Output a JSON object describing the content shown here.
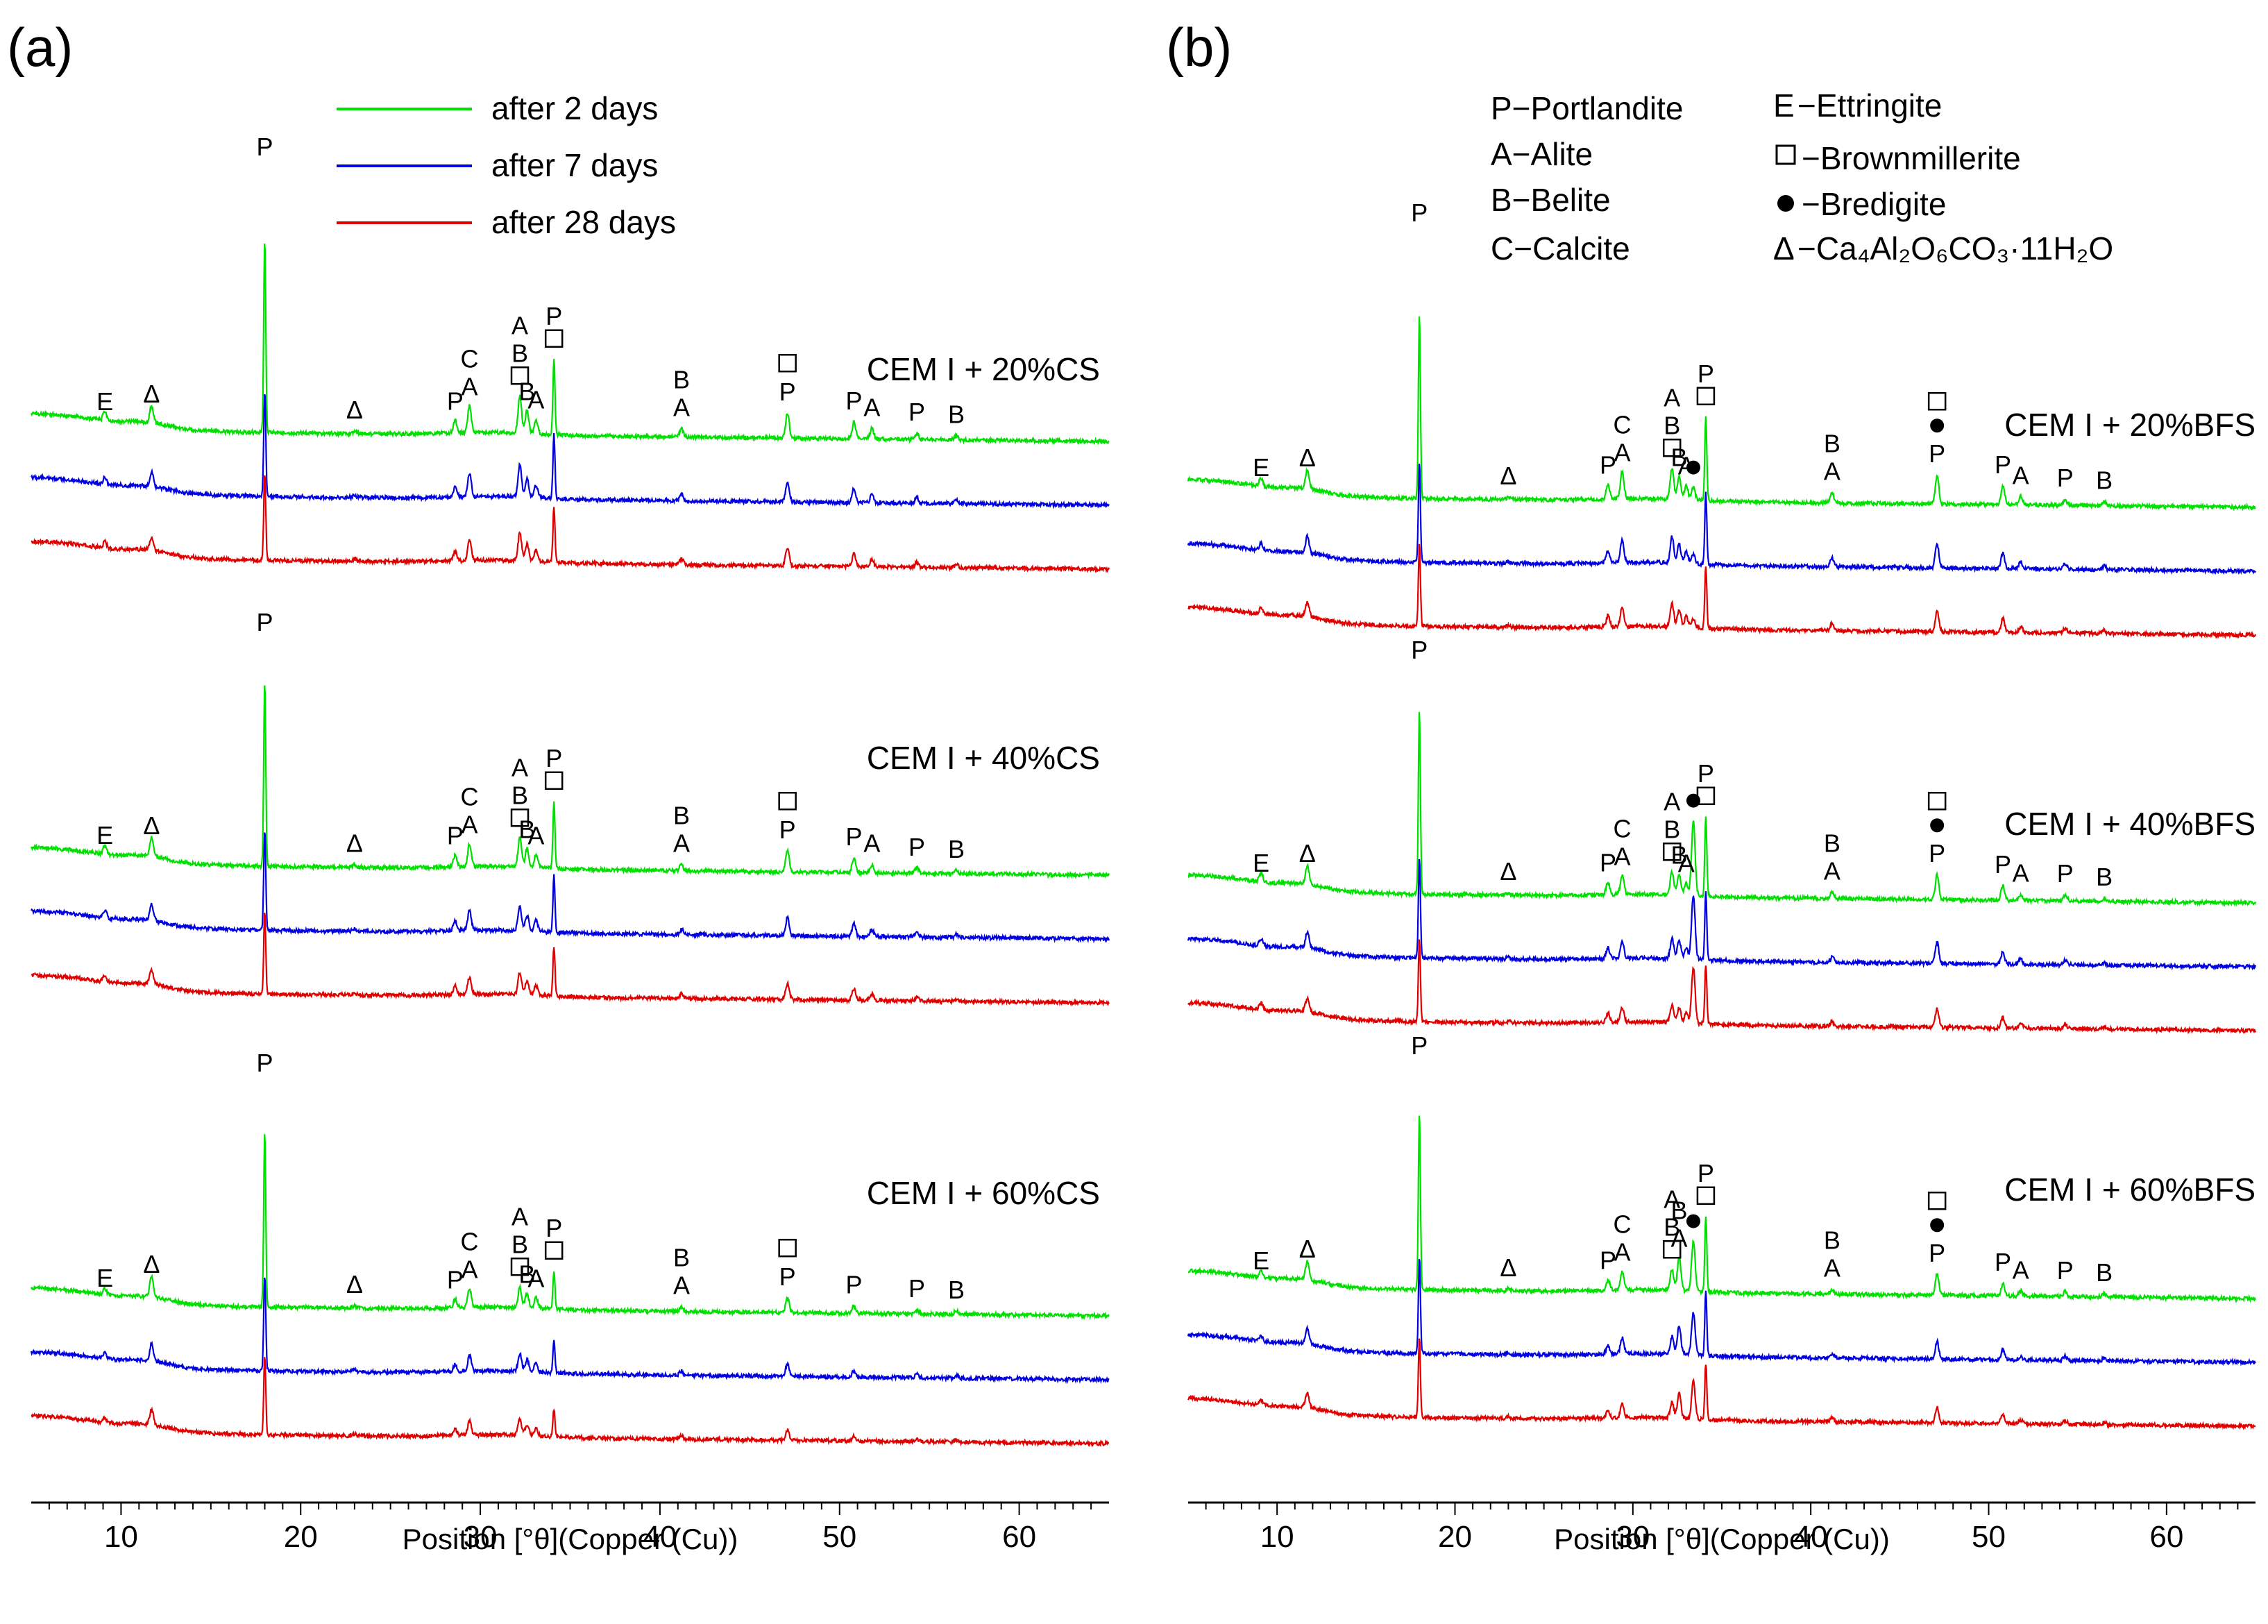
{
  "figure": {
    "panels": [
      "(a)",
      "(b)"
    ],
    "legend": [
      {
        "label": "after 2 days",
        "color": "#00e000"
      },
      {
        "label": "after 7 days",
        "color": "#0000e0"
      },
      {
        "label": "after 28 days",
        "color": "#e00000"
      }
    ],
    "phase_key_left": [
      "P−Portlandite",
      "A−Alite",
      "B−Belite",
      "C−Calcite"
    ],
    "phase_key_right": [
      {
        "symbol": "E",
        "text": "−Ettringite"
      },
      {
        "symbol": "square",
        "text": "−Brownmillerite"
      },
      {
        "symbol": "dot",
        "text": "−Bredigite"
      },
      {
        "symbol": "Δ",
        "text": "−Ca₄Al₂O₆CO₃·11H₂O"
      }
    ]
  },
  "chart_data": [
    {
      "type": "line",
      "panel": "(a)",
      "xlabel": "Position [°θ](Copper (Cu))",
      "ylabel": "",
      "xlim": [
        5,
        65
      ],
      "xticks": [
        10,
        20,
        30,
        40,
        50,
        60
      ],
      "series": [
        "after 2 days",
        "after 7 days",
        "after 28 days"
      ],
      "groups": [
        {
          "label": "CEM I + 20%CS",
          "peaks": [
            {
              "x": 9.1,
              "h": 0.2,
              "labels": [
                "E"
              ]
            },
            {
              "x": 11.7,
              "h": 0.4,
              "labels": [
                "Δ"
              ]
            },
            {
              "x": 23.0,
              "h": 0.06,
              "labels": [
                "Δ"
              ]
            },
            {
              "x": 18.0,
              "h": 4.6,
              "labels": [
                "P"
              ]
            },
            {
              "x": 28.6,
              "h": 0.3,
              "labels": [
                "P"
              ]
            },
            {
              "x": 29.4,
              "h": 0.65,
              "labels": [
                "C",
                "A"
              ]
            },
            {
              "x": 32.2,
              "h": 0.9,
              "labels": [
                "A",
                "B",
                "square"
              ]
            },
            {
              "x": 32.6,
              "h": 0.55,
              "labels": [
                "B"
              ]
            },
            {
              "x": 33.1,
              "h": 0.35,
              "labels": [
                "A"
              ]
            },
            {
              "x": 34.1,
              "h": 1.8,
              "labels": [
                "P",
                "square"
              ]
            },
            {
              "x": 41.2,
              "h": 0.2,
              "labels": [
                "B",
                "A"
              ]
            },
            {
              "x": 47.1,
              "h": 0.6,
              "labels": [
                "square",
                "P"
              ]
            },
            {
              "x": 50.8,
              "h": 0.4,
              "labels": [
                "P"
              ]
            },
            {
              "x": 51.8,
              "h": 0.25,
              "labels": [
                "A"
              ]
            },
            {
              "x": 54.3,
              "h": 0.15,
              "labels": [
                "P"
              ]
            },
            {
              "x": 56.5,
              "h": 0.1,
              "labels": [
                "B"
              ]
            }
          ]
        },
        {
          "label": "CEM I + 40%CS",
          "peaks": [
            {
              "x": 9.1,
              "h": 0.2,
              "labels": [
                "E"
              ]
            },
            {
              "x": 11.7,
              "h": 0.45,
              "labels": [
                "Δ"
              ]
            },
            {
              "x": 23.0,
              "h": 0.07,
              "labels": [
                "Δ"
              ]
            },
            {
              "x": 18.0,
              "h": 4.4,
              "labels": [
                "P"
              ]
            },
            {
              "x": 28.6,
              "h": 0.28,
              "labels": [
                "P"
              ]
            },
            {
              "x": 29.4,
              "h": 0.55,
              "labels": [
                "C",
                "A"
              ]
            },
            {
              "x": 32.2,
              "h": 0.7,
              "labels": [
                "A",
                "B",
                "square"
              ]
            },
            {
              "x": 32.6,
              "h": 0.45,
              "labels": [
                "B"
              ]
            },
            {
              "x": 33.1,
              "h": 0.3,
              "labels": [
                "A"
              ]
            },
            {
              "x": 34.1,
              "h": 1.6,
              "labels": [
                "P",
                "square"
              ]
            },
            {
              "x": 41.2,
              "h": 0.15,
              "labels": [
                "B",
                "A"
              ]
            },
            {
              "x": 47.1,
              "h": 0.5,
              "labels": [
                "square",
                "P"
              ]
            },
            {
              "x": 50.8,
              "h": 0.35,
              "labels": [
                "P"
              ]
            },
            {
              "x": 51.8,
              "h": 0.2,
              "labels": [
                "A"
              ]
            },
            {
              "x": 54.3,
              "h": 0.12,
              "labels": [
                "P"
              ]
            },
            {
              "x": 56.5,
              "h": 0.08,
              "labels": [
                "B"
              ]
            }
          ]
        },
        {
          "label": "CEM I + 60%CS",
          "peaks": [
            {
              "x": 9.1,
              "h": 0.15,
              "labels": [
                "E"
              ]
            },
            {
              "x": 11.7,
              "h": 0.5,
              "labels": [
                "Δ"
              ]
            },
            {
              "x": 23.0,
              "h": 0.06,
              "labels": [
                "Δ"
              ]
            },
            {
              "x": 18.0,
              "h": 4.2,
              "labels": [
                "P"
              ]
            },
            {
              "x": 28.6,
              "h": 0.2,
              "labels": [
                "P"
              ]
            },
            {
              "x": 29.4,
              "h": 0.45,
              "labels": [
                "C",
                "A"
              ]
            },
            {
              "x": 32.2,
              "h": 0.5,
              "labels": [
                "A",
                "B",
                "square"
              ]
            },
            {
              "x": 32.6,
              "h": 0.35,
              "labels": [
                "B"
              ]
            },
            {
              "x": 33.1,
              "h": 0.25,
              "labels": [
                "A"
              ]
            },
            {
              "x": 34.1,
              "h": 0.9,
              "labels": [
                "P",
                "square"
              ]
            },
            {
              "x": 41.2,
              "h": 0.12,
              "labels": [
                "B",
                "A"
              ]
            },
            {
              "x": 47.1,
              "h": 0.35,
              "labels": [
                "square",
                "P"
              ]
            },
            {
              "x": 50.8,
              "h": 0.18,
              "labels": [
                "P"
              ]
            },
            {
              "x": 54.3,
              "h": 0.1,
              "labels": [
                "P"
              ]
            },
            {
              "x": 56.5,
              "h": 0.08,
              "labels": [
                "B"
              ]
            }
          ]
        }
      ]
    },
    {
      "type": "line",
      "panel": "(b)",
      "xlabel": "Position [°θ](Copper (Cu))",
      "ylabel": "",
      "xlim": [
        5,
        65
      ],
      "xticks": [
        10,
        20,
        30,
        40,
        50,
        60
      ],
      "series": [
        "after 2 days",
        "after 7 days",
        "after 28 days"
      ],
      "groups": [
        {
          "label": "CEM I + 20%BFS",
          "peaks": [
            {
              "x": 9.1,
              "h": 0.2,
              "labels": [
                "E"
              ]
            },
            {
              "x": 11.7,
              "h": 0.45,
              "labels": [
                "Δ"
              ]
            },
            {
              "x": 23.0,
              "h": 0.06,
              "labels": [
                "Δ"
              ]
            },
            {
              "x": 18.0,
              "h": 4.4,
              "labels": [
                "P"
              ]
            },
            {
              "x": 28.6,
              "h": 0.35,
              "labels": [
                "P"
              ]
            },
            {
              "x": 29.4,
              "h": 0.65,
              "labels": [
                "C",
                "A"
              ]
            },
            {
              "x": 32.2,
              "h": 0.75,
              "labels": [
                "A",
                "B",
                "square"
              ]
            },
            {
              "x": 32.6,
              "h": 0.55,
              "labels": [
                "B"
              ]
            },
            {
              "x": 33.0,
              "h": 0.35,
              "labels": [
                "A"
              ]
            },
            {
              "x": 33.4,
              "h": 0.3,
              "labels": [
                "dot"
              ]
            },
            {
              "x": 34.1,
              "h": 2.0,
              "labels": [
                "P",
                "square"
              ]
            },
            {
              "x": 41.2,
              "h": 0.25,
              "labels": [
                "B",
                "A"
              ]
            },
            {
              "x": 47.1,
              "h": 0.7,
              "labels": [
                "square",
                "dot",
                "P"
              ]
            },
            {
              "x": 50.8,
              "h": 0.45,
              "labels": [
                "P"
              ]
            },
            {
              "x": 51.8,
              "h": 0.2,
              "labels": [
                "A"
              ]
            },
            {
              "x": 54.3,
              "h": 0.15,
              "labels": [
                "P"
              ]
            },
            {
              "x": 56.5,
              "h": 0.1,
              "labels": [
                "B"
              ]
            }
          ]
        },
        {
          "label": "CEM I + 40%BFS",
          "peaks": [
            {
              "x": 9.1,
              "h": 0.2,
              "labels": [
                "E"
              ]
            },
            {
              "x": 11.7,
              "h": 0.45,
              "labels": [
                "Δ"
              ]
            },
            {
              "x": 23.0,
              "h": 0.06,
              "labels": [
                "Δ"
              ]
            },
            {
              "x": 18.0,
              "h": 4.4,
              "labels": [
                "P"
              ]
            },
            {
              "x": 28.6,
              "h": 0.3,
              "labels": [
                "P"
              ]
            },
            {
              "x": 29.4,
              "h": 0.45,
              "labels": [
                "C",
                "A"
              ]
            },
            {
              "x": 32.2,
              "h": 0.55,
              "labels": [
                "A",
                "B",
                "square"
              ]
            },
            {
              "x": 32.6,
              "h": 0.5,
              "labels": [
                "B"
              ]
            },
            {
              "x": 33.0,
              "h": 0.3,
              "labels": [
                "A"
              ]
            },
            {
              "x": 33.4,
              "h": 1.8,
              "labels": [
                "dot"
              ]
            },
            {
              "x": 34.1,
              "h": 1.9,
              "labels": [
                "P",
                "square"
              ]
            },
            {
              "x": 41.2,
              "h": 0.15,
              "labels": [
                "B",
                "A"
              ]
            },
            {
              "x": 47.1,
              "h": 0.6,
              "labels": [
                "square",
                "dot",
                "P"
              ]
            },
            {
              "x": 50.8,
              "h": 0.35,
              "labels": [
                "P"
              ]
            },
            {
              "x": 51.8,
              "h": 0.15,
              "labels": [
                "A"
              ]
            },
            {
              "x": 54.3,
              "h": 0.15,
              "labels": [
                "P"
              ]
            },
            {
              "x": 56.5,
              "h": 0.08,
              "labels": [
                "B"
              ]
            }
          ]
        },
        {
          "label": "CEM I + 60%BFS",
          "peaks": [
            {
              "x": 9.1,
              "h": 0.15,
              "labels": [
                "E"
              ]
            },
            {
              "x": 11.7,
              "h": 0.45,
              "labels": [
                "Δ"
              ]
            },
            {
              "x": 23.0,
              "h": 0.05,
              "labels": [
                "Δ"
              ]
            },
            {
              "x": 18.0,
              "h": 4.2,
              "labels": [
                "P"
              ]
            },
            {
              "x": 28.6,
              "h": 0.25,
              "labels": [
                "P"
              ]
            },
            {
              "x": 29.4,
              "h": 0.45,
              "labels": [
                "C",
                "A"
              ]
            },
            {
              "x": 32.2,
              "h": 0.5,
              "labels": [
                "A",
                "B",
                "square"
              ]
            },
            {
              "x": 32.6,
              "h": 0.8,
              "labels": [
                "B",
                "A"
              ]
            },
            {
              "x": 33.4,
              "h": 1.2,
              "labels": [
                "dot"
              ]
            },
            {
              "x": 34.1,
              "h": 1.8,
              "labels": [
                "P",
                "square"
              ]
            },
            {
              "x": 41.2,
              "h": 0.12,
              "labels": [
                "B",
                "A"
              ]
            },
            {
              "x": 47.1,
              "h": 0.5,
              "labels": [
                "square",
                "dot",
                "P"
              ]
            },
            {
              "x": 50.8,
              "h": 0.3,
              "labels": [
                "P"
              ]
            },
            {
              "x": 51.8,
              "h": 0.12,
              "labels": [
                "A"
              ]
            },
            {
              "x": 54.3,
              "h": 0.12,
              "labels": [
                "P"
              ]
            },
            {
              "x": 56.5,
              "h": 0.08,
              "labels": [
                "B"
              ]
            }
          ]
        }
      ]
    }
  ]
}
